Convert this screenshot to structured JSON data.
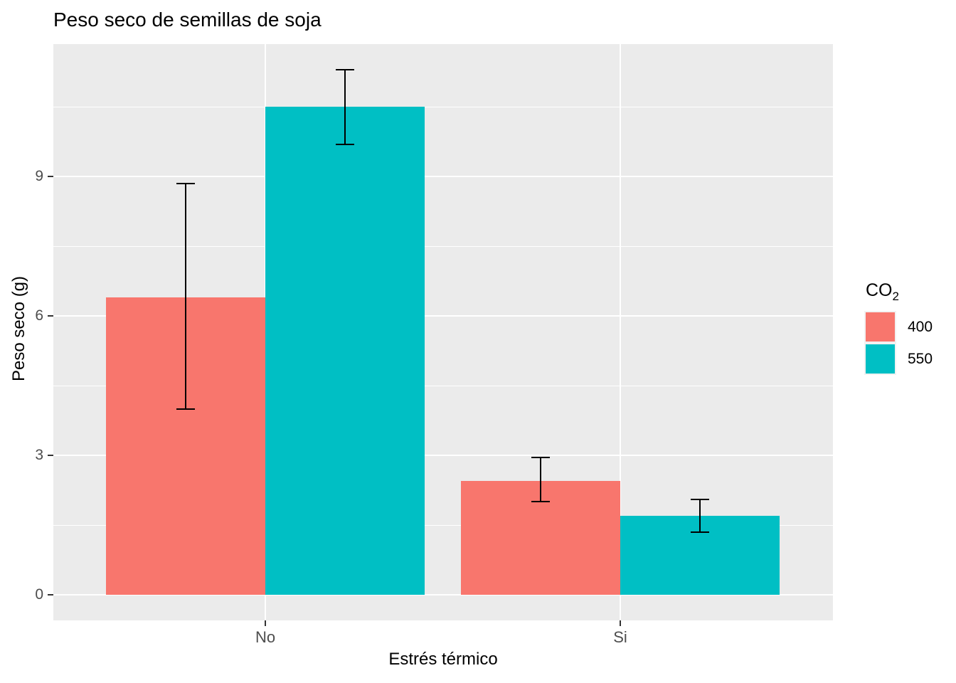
{
  "chart_data": {
    "type": "bar",
    "title": "Peso seco de semillas de soja",
    "xlabel": "Estrés térmico",
    "ylabel": "Peso seco (g)",
    "categories": [
      "No",
      "Si"
    ],
    "series": [
      {
        "name": "400",
        "color": "#F8766D",
        "values": [
          6.4,
          2.45
        ],
        "error_low": [
          4.0,
          2.0
        ],
        "error_high": [
          8.85,
          2.95
        ]
      },
      {
        "name": "550",
        "color": "#00BFC4",
        "values": [
          10.5,
          1.7
        ],
        "error_low": [
          9.7,
          1.35
        ],
        "error_high": [
          11.3,
          2.05
        ]
      }
    ],
    "yticks": [
      0,
      3,
      6,
      9
    ],
    "minor_gridlines": [
      1.5,
      4.5,
      7.5,
      10.5
    ],
    "ylim": [
      -0.55,
      11.9
    ],
    "grid": true,
    "legend_position": "right",
    "legend_title": "CO2"
  },
  "legend": {
    "title_main": "CO",
    "title_sub": "2",
    "items": [
      {
        "label": "400",
        "color": "#F8766D"
      },
      {
        "label": "550",
        "color": "#00BFC4"
      }
    ]
  },
  "style": {
    "panel_bg": "#EBEBEB",
    "grid_color": "#FFFFFF",
    "tick_label_color": "#4D4D4D",
    "tick_mark_color": "#333333",
    "bar_400": "#F8766D",
    "bar_550": "#00BFC4"
  }
}
